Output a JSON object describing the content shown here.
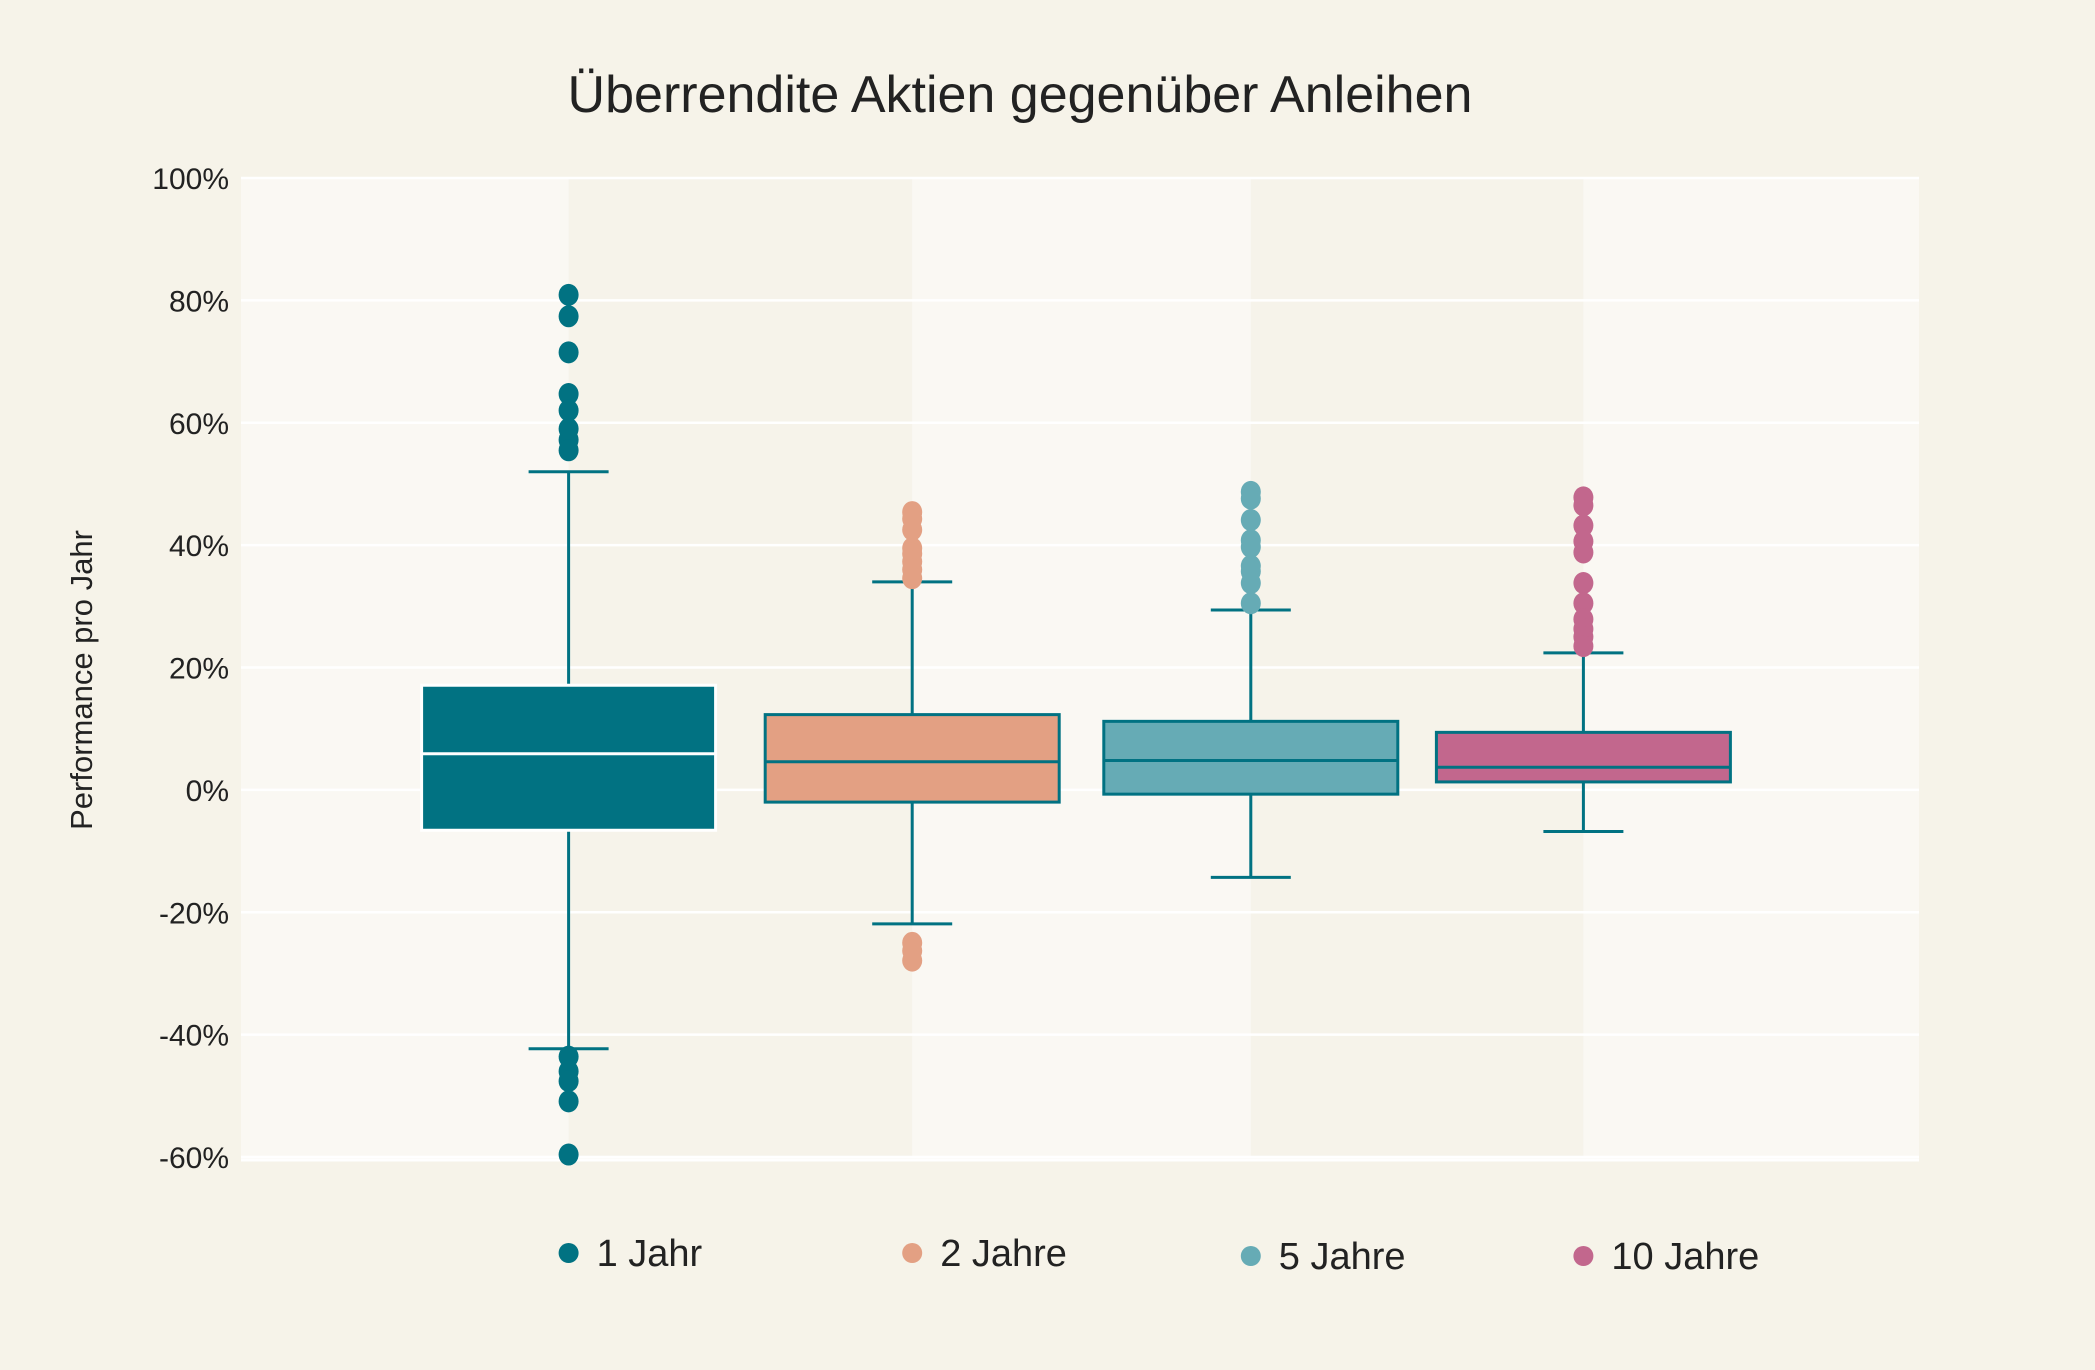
{
  "chart_data": {
    "type": "box",
    "title": "Überrendite Aktien gegenüber Anleihen",
    "xlabel": "",
    "ylabel": "Performance pro Jahr",
    "ylim": [
      -60,
      100
    ],
    "yticks": [
      100,
      80,
      60,
      40,
      20,
      0,
      -20,
      -40,
      -60
    ],
    "ytick_labels": [
      "100%",
      "80%",
      "60%",
      "40%",
      "20%",
      "0%",
      "-20%",
      "-40%",
      "-60%"
    ],
    "grid": true,
    "legend_position": "bottom",
    "series": [
      {
        "name": "1 Jahr",
        "color": "#017282",
        "q1": -6.6,
        "median": 5.9,
        "q3": 17.1,
        "whisker_low": -42.3,
        "whisker_high": 52.0,
        "outliers": [
          80.9,
          77.4,
          71.5,
          64.7,
          62.0,
          59.0,
          57.2,
          55.5,
          -43.6,
          -46.0,
          -47.6,
          -50.9,
          -59.6
        ]
      },
      {
        "name": "2 Jahre",
        "color": "#e3a083",
        "q1": -2.0,
        "median": 4.6,
        "q3": 12.3,
        "whisker_low": -21.9,
        "whisker_high": 34.0,
        "outliers": [
          45.4,
          44.3,
          42.5,
          39.5,
          38.6,
          37.3,
          36.0,
          34.6,
          -25.0,
          -26.3,
          -27.9
        ]
      },
      {
        "name": "5 Jahre",
        "color": "#66abb5",
        "q1": -0.7,
        "median": 4.8,
        "q3": 11.2,
        "whisker_low": -14.3,
        "whisker_high": 29.4,
        "outliers": [
          48.7,
          47.6,
          44.1,
          40.8,
          39.7,
          36.6,
          35.7,
          33.8,
          30.5
        ]
      },
      {
        "name": "10 Jahre",
        "color": "#c2678d",
        "q1": 1.3,
        "median": 3.7,
        "q3": 9.4,
        "whisker_low": -6.8,
        "whisker_high": 22.4,
        "outliers": [
          47.8,
          46.5,
          43.2,
          40.6,
          38.8,
          33.8,
          30.5,
          27.9,
          26.3,
          25.0,
          23.5
        ]
      }
    ]
  }
}
